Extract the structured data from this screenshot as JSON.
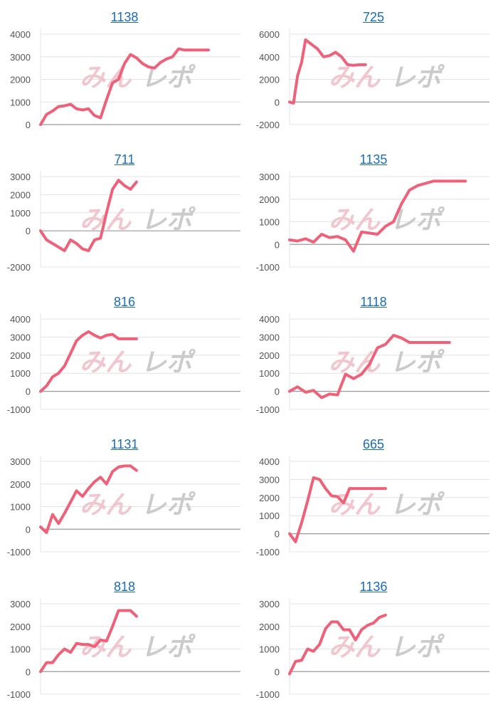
{
  "colors": {
    "line": "#ee6178",
    "link": "#1a6bb8",
    "grid": "#e3e3e3",
    "zero": "#9a9a9a",
    "watermark_a": "#f2c4cc",
    "watermark_b": "#c9c9c9"
  },
  "watermark": {
    "part1": "みん",
    "part2": "レポ"
  },
  "chart_data": [
    {
      "type": "line",
      "title": "1138",
      "ylim": [
        0,
        4000
      ],
      "ticks": [
        4000,
        3000,
        2000,
        1000,
        0
      ],
      "x": [
        0,
        3,
        6,
        9,
        12,
        15,
        18,
        21,
        24,
        27,
        30,
        33,
        36,
        39,
        42,
        45,
        48,
        51,
        54,
        57,
        60,
        63,
        66,
        69,
        72,
        75,
        78,
        81,
        84
      ],
      "values": [
        0,
        450,
        600,
        800,
        830,
        900,
        700,
        650,
        700,
        400,
        300,
        1100,
        1850,
        2000,
        2700,
        3100,
        2950,
        2700,
        2550,
        2500,
        2750,
        2900,
        3000,
        3350,
        3300,
        3300,
        3300,
        3300,
        3300
      ]
    },
    {
      "type": "line",
      "title": "725",
      "ylim": [
        -2000,
        6000
      ],
      "ticks": [
        6000,
        4000,
        2000,
        0,
        -2000
      ],
      "x": [
        0,
        2,
        4,
        6,
        8,
        11,
        14,
        17,
        20,
        23,
        26,
        29,
        32,
        35,
        38
      ],
      "values": [
        0,
        -100,
        2300,
        3500,
        5500,
        5100,
        4700,
        4000,
        4100,
        4400,
        4000,
        3300,
        3250,
        3300,
        3300
      ]
    },
    {
      "type": "line",
      "title": "711",
      "ylim": [
        -2000,
        3000
      ],
      "ticks": [
        3000,
        2000,
        1000,
        0,
        -2000
      ],
      "x": [
        0,
        3,
        6,
        9,
        12,
        15,
        18,
        21,
        24,
        27,
        30,
        33,
        36,
        39,
        42,
        45,
        48
      ],
      "values": [
        0,
        -500,
        -700,
        -900,
        -1100,
        -500,
        -700,
        -1000,
        -1100,
        -500,
        -400,
        1000,
        2300,
        2800,
        2500,
        2300,
        2700
      ]
    },
    {
      "type": "line",
      "title": "1135",
      "ylim": [
        -1000,
        3000
      ],
      "ticks": [
        3000,
        2000,
        1000,
        0,
        -1000
      ],
      "x": [
        0,
        4,
        8,
        12,
        16,
        20,
        24,
        28,
        32,
        36,
        40,
        44,
        48,
        52,
        56,
        60,
        64,
        68,
        72,
        76,
        80,
        84,
        88
      ],
      "values": [
        200,
        150,
        250,
        100,
        450,
        300,
        350,
        200,
        -300,
        550,
        500,
        450,
        800,
        1000,
        1800,
        2400,
        2600,
        2700,
        2800,
        2800,
        2800,
        2800,
        2800
      ]
    },
    {
      "type": "line",
      "title": "816",
      "ylim": [
        -1000,
        4000
      ],
      "ticks": [
        4000,
        3000,
        2000,
        1000,
        0,
        -1000
      ],
      "x": [
        0,
        3,
        6,
        9,
        12,
        15,
        18,
        21,
        24,
        27,
        30,
        33,
        36,
        39,
        42,
        45,
        48
      ],
      "values": [
        0,
        300,
        800,
        1000,
        1400,
        2100,
        2800,
        3100,
        3300,
        3100,
        2950,
        3100,
        3150,
        2900,
        2900,
        2900,
        2900
      ]
    },
    {
      "type": "line",
      "title": "1118",
      "ylim": [
        -1000,
        4000
      ],
      "ticks": [
        4000,
        3000,
        2000,
        1000,
        0,
        -1000
      ],
      "x": [
        0,
        4,
        8,
        12,
        16,
        20,
        24,
        28,
        32,
        36,
        40,
        44,
        48,
        52,
        56,
        60,
        64,
        68,
        72,
        76,
        80
      ],
      "values": [
        0,
        250,
        -50,
        50,
        -350,
        -150,
        -200,
        950,
        700,
        950,
        1500,
        2400,
        2600,
        3100,
        2950,
        2700,
        2700,
        2700,
        2700,
        2700,
        2700
      ]
    },
    {
      "type": "line",
      "title": "1131",
      "ylim": [
        -1000,
        3000
      ],
      "ticks": [
        3000,
        2000,
        1000,
        0,
        -1000
      ],
      "x": [
        0,
        3,
        6,
        9,
        12,
        15,
        18,
        21,
        24,
        27,
        30,
        33,
        36,
        39,
        42,
        45,
        48
      ],
      "values": [
        100,
        -150,
        650,
        250,
        700,
        1200,
        1700,
        1450,
        1800,
        2100,
        2300,
        2000,
        2550,
        2750,
        2800,
        2800,
        2600
      ]
    },
    {
      "type": "line",
      "title": "665",
      "ylim": [
        -1000,
        4000
      ],
      "ticks": [
        4000,
        3000,
        2000,
        1000,
        0,
        -1000
      ],
      "x": [
        0,
        3,
        6,
        9,
        12,
        15,
        18,
        21,
        24,
        27,
        30,
        33,
        36,
        39,
        42,
        45,
        48
      ],
      "values": [
        0,
        -450,
        600,
        1800,
        3100,
        3000,
        2500,
        2100,
        2050,
        1700,
        2500,
        2500,
        2500,
        2500,
        2500,
        2500,
        2500
      ]
    },
    {
      "type": "line",
      "title": "818",
      "ylim": [
        -1000,
        3000
      ],
      "ticks": [
        3000,
        2000,
        1000,
        0,
        -1000
      ],
      "x": [
        0,
        3,
        6,
        9,
        12,
        15,
        18,
        21,
        24,
        27,
        30,
        33,
        36,
        39,
        42,
        45,
        48
      ],
      "values": [
        0,
        400,
        400,
        750,
        1000,
        850,
        1250,
        1200,
        1200,
        1100,
        1400,
        1350,
        2000,
        2700,
        2700,
        2700,
        2450
      ]
    },
    {
      "type": "line",
      "title": "1136",
      "ylim": [
        -1000,
        3000
      ],
      "ticks": [
        3000,
        2000,
        1000,
        0,
        -1000
      ],
      "x": [
        0,
        3,
        6,
        9,
        12,
        15,
        18,
        21,
        24,
        27,
        30,
        33,
        36,
        39,
        42,
        45,
        48
      ],
      "values": [
        -100,
        450,
        500,
        1000,
        900,
        1200,
        1900,
        2200,
        2200,
        1850,
        1850,
        1400,
        1850,
        2050,
        2150,
        2400,
        2500
      ]
    }
  ]
}
